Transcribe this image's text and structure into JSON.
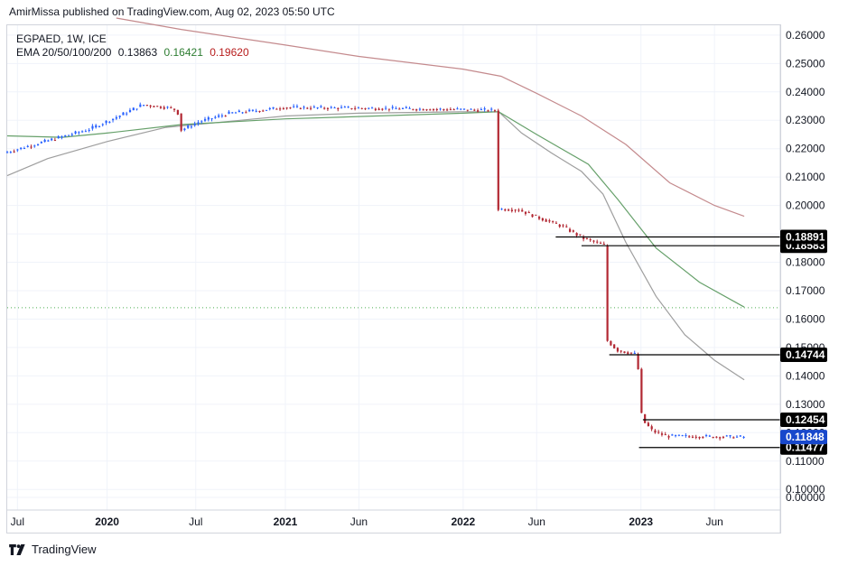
{
  "header": {
    "text": "AmirMissa published on TradingView.com, Aug 02, 2023 05:50 UTC"
  },
  "legend": {
    "symbol": "EGPAED, 1W, ICE",
    "ema_label": "EMA 20/50/100/200",
    "ema_values": [
      "0.13863",
      "0.16421",
      "0.19620"
    ],
    "ema_colors": [
      "#131722",
      "#2e7d32",
      "#b71c1c"
    ]
  },
  "footer": {
    "brand": "TradingView"
  },
  "colors": {
    "up": "#2962ff",
    "down": "#b22833",
    "ema20": "#9e9e9e",
    "ema50": "#66a06a",
    "ema100": "#9e9e9e",
    "ema200": "#c48a8d",
    "hline": "#000000",
    "dotted": "#4caf50",
    "grid": "#f0f3fa",
    "axis_text": "#131722",
    "last_price_bg": "#1848cc"
  },
  "chart_data": {
    "type": "candlestick",
    "ylim": [
      0.0,
      0.26
    ],
    "y_ticks": [
      "0.26000",
      "0.25000",
      "0.24000",
      "0.23000",
      "0.22000",
      "0.21000",
      "0.20000",
      "0.19000",
      "0.18000",
      "0.17000",
      "0.16000",
      "0.15000",
      "0.14000",
      "0.13000",
      "0.12000",
      "0.11000",
      "0.10000",
      "0.00000"
    ],
    "x_ticks": [
      "Jul",
      "2020",
      "Jul",
      "2021",
      "Jun",
      "2022",
      "Jun",
      "2023",
      "Jun"
    ],
    "x_tick_bold": [
      false,
      true,
      false,
      true,
      false,
      true,
      false,
      true,
      false
    ],
    "x_tick_dates": [
      "2019-07-01",
      "2020-01-01",
      "2020-07-01",
      "2021-01-01",
      "2021-06-01",
      "2022-01-01",
      "2022-06-01",
      "2023-01-01",
      "2023-06-01"
    ],
    "x_range": [
      "2019-06-10",
      "2023-10-14"
    ],
    "candles_daterange": [
      "2019-06-10",
      "2023-08-01"
    ],
    "close_path": [
      [
        "2019-06-10",
        0.2185
      ],
      [
        "2019-09-01",
        0.2225
      ],
      [
        "2019-12-01",
        0.2268
      ],
      [
        "2020-02-01",
        0.2315
      ],
      [
        "2020-03-20",
        0.2355
      ],
      [
        "2020-05-10",
        0.2345
      ],
      [
        "2020-05-31",
        0.2335
      ],
      [
        "2020-06-07",
        0.2265
      ],
      [
        "2020-07-15",
        0.2295
      ],
      [
        "2020-09-15",
        0.2325
      ],
      [
        "2020-11-15",
        0.2335
      ],
      [
        "2021-01-01",
        0.2345
      ],
      [
        "2021-06-01",
        0.2343
      ],
      [
        "2022-01-01",
        0.2338
      ],
      [
        "2022-03-19",
        0.2335
      ],
      [
        "2022-03-21",
        0.1988
      ],
      [
        "2022-05-01",
        0.1985
      ],
      [
        "2022-06-15",
        0.1955
      ],
      [
        "2022-08-01",
        0.1925
      ],
      [
        "2022-09-10",
        0.1885
      ],
      [
        "2022-10-24",
        0.186
      ],
      [
        "2022-10-26",
        0.158
      ],
      [
        "2022-10-30",
        0.1525
      ],
      [
        "2022-11-20",
        0.149
      ],
      [
        "2022-12-31",
        0.1475
      ],
      [
        "2023-01-05",
        0.1345
      ],
      [
        "2023-01-10",
        0.1245
      ],
      [
        "2023-02-01",
        0.1205
      ],
      [
        "2023-03-01",
        0.1188
      ],
      [
        "2023-08-01",
        0.1185
      ]
    ],
    "series": [
      {
        "name": "EMA 20",
        "value": "0.13863",
        "points": [
          [
            "2019-06-10",
            0.2105
          ],
          [
            "2019-09-01",
            0.2165
          ],
          [
            "2020-01-01",
            0.2225
          ],
          [
            "2020-05-01",
            0.2275
          ],
          [
            "2020-09-01",
            0.2295
          ],
          [
            "2021-01-01",
            0.2315
          ],
          [
            "2021-06-01",
            0.2325
          ],
          [
            "2022-01-01",
            0.233
          ],
          [
            "2022-03-15",
            0.233
          ],
          [
            "2022-05-01",
            0.2255
          ],
          [
            "2022-07-01",
            0.2185
          ],
          [
            "2022-09-01",
            0.212
          ],
          [
            "2022-10-15",
            0.204
          ],
          [
            "2022-12-01",
            0.187
          ],
          [
            "2023-02-01",
            0.168
          ],
          [
            "2023-04-01",
            0.1545
          ],
          [
            "2023-06-01",
            0.1455
          ],
          [
            "2023-08-01",
            0.1386
          ]
        ]
      },
      {
        "name": "EMA 50",
        "value": "0.16421",
        "points": [
          [
            "2019-06-10",
            0.2245
          ],
          [
            "2019-10-01",
            0.224
          ],
          [
            "2020-01-01",
            0.2255
          ],
          [
            "2020-06-01",
            0.2285
          ],
          [
            "2021-01-01",
            0.2305
          ],
          [
            "2022-01-01",
            0.2325
          ],
          [
            "2022-03-15",
            0.233
          ],
          [
            "2022-06-01",
            0.225
          ],
          [
            "2022-09-15",
            0.2145
          ],
          [
            "2022-11-15",
            0.202
          ],
          [
            "2023-02-01",
            0.185
          ],
          [
            "2023-05-01",
            0.173
          ],
          [
            "2023-08-01",
            0.1642
          ]
        ]
      },
      {
        "name": "EMA 200",
        "value": "0.19620",
        "points": [
          [
            "2020-01-20",
            0.266
          ],
          [
            "2020-06-01",
            0.262
          ],
          [
            "2021-01-01",
            0.2565
          ],
          [
            "2021-06-01",
            0.2525
          ],
          [
            "2022-01-01",
            0.248
          ],
          [
            "2022-03-20",
            0.2455
          ],
          [
            "2022-06-01",
            0.2395
          ],
          [
            "2022-09-01",
            0.2315
          ],
          [
            "2022-12-01",
            0.2215
          ],
          [
            "2023-03-01",
            0.208
          ],
          [
            "2023-06-01",
            0.2
          ],
          [
            "2023-08-01",
            0.1962
          ]
        ]
      }
    ],
    "horizontal_lines": [
      {
        "label": "0.18891",
        "value": 0.18891,
        "from": "2022-07-10",
        "label_pos": 0.18891
      },
      {
        "label": "0.18583",
        "value": 0.18583,
        "from": "2022-09-01",
        "label_pos": 0.18583
      },
      {
        "label": "0.14744",
        "value": 0.14744,
        "from": "2022-10-28",
        "label_pos": 0.14744
      },
      {
        "label": "0.12454",
        "value": 0.12454,
        "from": "2023-01-05",
        "label_pos": 0.12454
      },
      {
        "label": "0.11477",
        "value": 0.11477,
        "from": "2022-12-28",
        "label_pos": 0.11477
      }
    ],
    "last_price": "0.11848",
    "dotted_level": 0.164
  }
}
